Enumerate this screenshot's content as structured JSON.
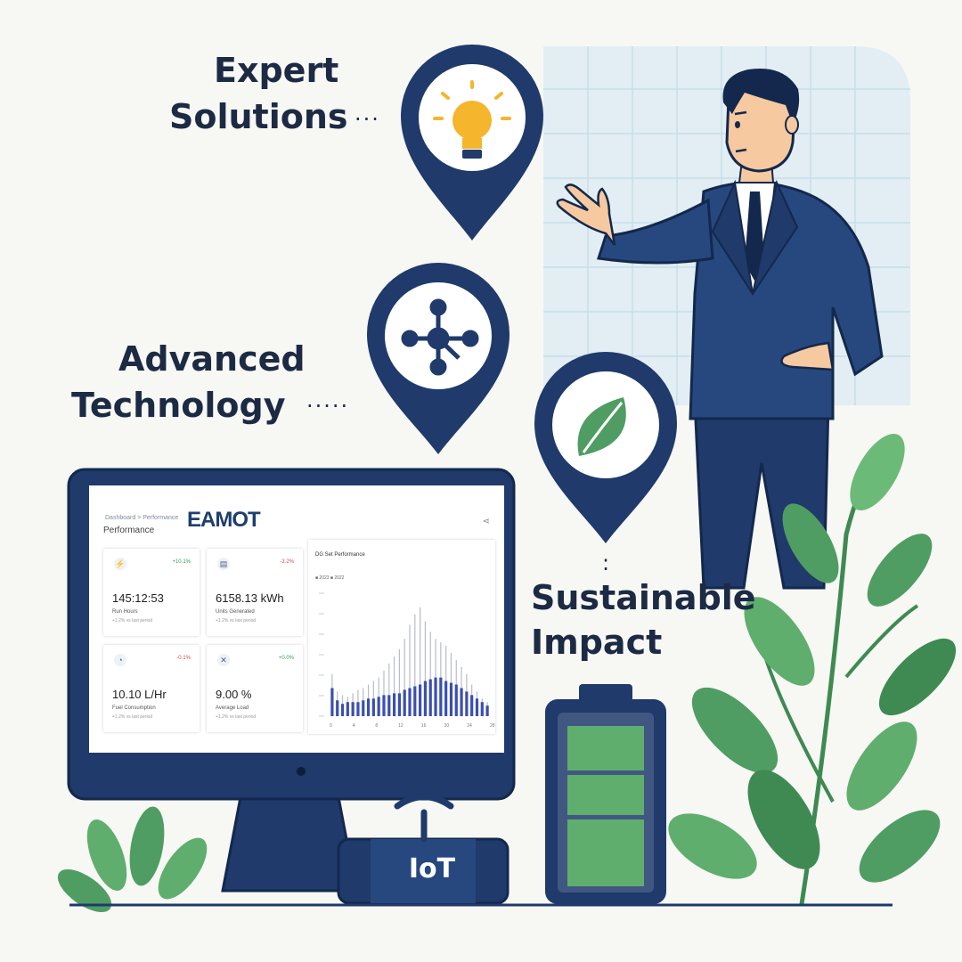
{
  "labels": {
    "expert": [
      "Expert",
      "Solutions"
    ],
    "advanced": [
      "Advanced",
      "Technology"
    ],
    "sustainable": [
      "Sustainable",
      "Impact"
    ],
    "dots_expert": "···",
    "dots_advanced": "·····",
    "dots_sustainable": ":"
  },
  "pins": [
    {
      "icon": "lightbulb-icon"
    },
    {
      "icon": "network-nodes-icon"
    },
    {
      "icon": "leaf-icon"
    }
  ],
  "dashboard": {
    "breadcrumb": "Dashboard  >  Performance",
    "page_title": "Performance",
    "logo": "EAMOT",
    "share_glyph": "⋖",
    "cards": [
      {
        "icon": "⚡",
        "delta": "+10.1%",
        "value": "145:12:53",
        "label": "Run Hours",
        "note": "+1.2% vs last period"
      },
      {
        "icon": "▤",
        "delta": "-3.2%",
        "value": "6158.13 kWh",
        "label": "Units Generated",
        "note": "+1.2% vs last period"
      },
      {
        "icon": "◔",
        "delta": "-0.1%",
        "value": "10.10 L/Hr",
        "label": "Fuel Consumption",
        "note": "+1.2% vs last period"
      },
      {
        "icon": "✕",
        "delta": "+0.0%",
        "value": "9.00 %",
        "label": "Average Load",
        "note": "+1.2% vs last period"
      }
    ],
    "chart_title": "DG Set Performance",
    "legend": "■ 2023  ■ 2022",
    "colors": {
      "up": "#2e9e5b",
      "down": "#d0504a"
    }
  },
  "chart_data": {
    "type": "bar",
    "categories": [
      "1",
      "2",
      "3",
      "4",
      "5",
      "6",
      "7",
      "8",
      "9",
      "10",
      "11",
      "12",
      "13",
      "14",
      "15",
      "16",
      "17",
      "18",
      "19",
      "20",
      "21",
      "22",
      "23",
      "24",
      "25",
      "26",
      "27",
      "28",
      "29",
      "30",
      "31"
    ],
    "series": [
      {
        "values": [
          16,
          9,
          7,
          8,
          8,
          8,
          9,
          10,
          10,
          11,
          12,
          12,
          13,
          13,
          15,
          16,
          17,
          18,
          20,
          21,
          22,
          22,
          20,
          19,
          18,
          16,
          14,
          12,
          10,
          8,
          6
        ]
      },
      {
        "values": [
          24,
          14,
          12,
          11,
          13,
          15,
          16,
          18,
          20,
          22,
          26,
          30,
          34,
          38,
          44,
          52,
          58,
          62,
          54,
          48,
          44,
          42,
          40,
          36,
          32,
          28,
          24,
          18,
          14,
          10,
          8
        ]
      }
    ],
    "ylim": [
      0,
      70
    ],
    "tick_labels": [
      "0",
      "4",
      "8",
      "12",
      "16",
      "20",
      "24",
      "28"
    ]
  },
  "iot": {
    "label": "IoT"
  },
  "colors": {
    "navy": "#1f3a6b",
    "green": "#4f9d62",
    "light_green": "#5fae6e",
    "grid_blue": "#e3eef4"
  }
}
